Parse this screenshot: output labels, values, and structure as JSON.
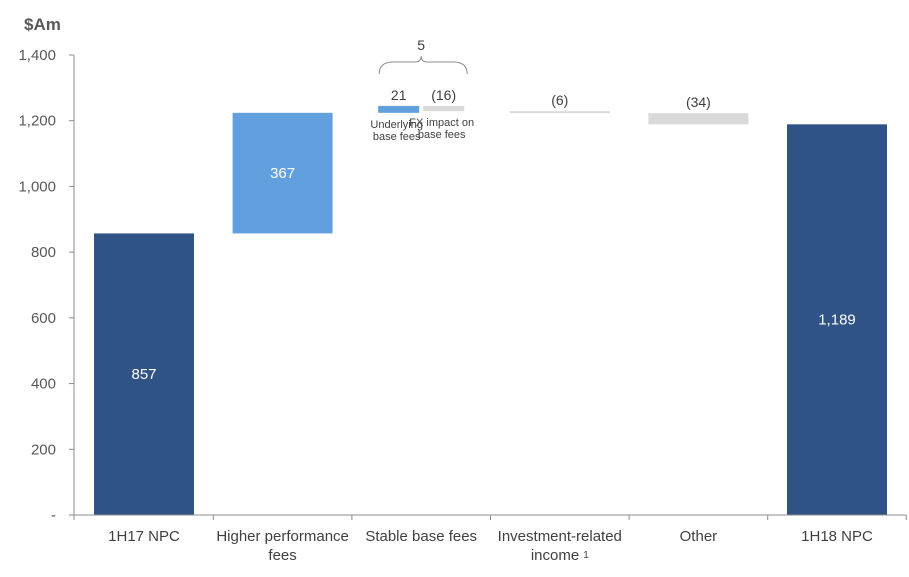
{
  "chart_data": {
    "type": "waterfall",
    "title": "",
    "ylabel": "$Am",
    "ylim": [
      0,
      1400
    ],
    "yticks": [
      {
        "value": 0,
        "label": "-"
      },
      {
        "value": 200,
        "label": "200"
      },
      {
        "value": 400,
        "label": "400"
      },
      {
        "value": 600,
        "label": "600"
      },
      {
        "value": 800,
        "label": "800"
      },
      {
        "value": 1000,
        "label": "1,000"
      },
      {
        "value": 1200,
        "label": "1,200"
      },
      {
        "value": 1400,
        "label": "1,400"
      }
    ],
    "categories": [
      {
        "label_lines": [
          "1H17 NPC"
        ],
        "superscript": ""
      },
      {
        "label_lines": [
          "Higher performance",
          "fees"
        ],
        "superscript": ""
      },
      {
        "label_lines": [
          "Stable base fees"
        ],
        "superscript": ""
      },
      {
        "label_lines": [
          "Investment-related",
          "income"
        ],
        "superscript": "1"
      },
      {
        "label_lines": [
          "Other"
        ],
        "superscript": ""
      },
      {
        "label_lines": [
          "1H18 NPC"
        ],
        "superscript": ""
      }
    ],
    "bars": [
      {
        "category": 0,
        "kind": "total",
        "start": 0,
        "end": 857,
        "label": "857",
        "color": "#2f5287",
        "label_inside": true
      },
      {
        "category": 1,
        "kind": "increase",
        "start": 857,
        "end": 1224,
        "label": "367",
        "color": "#619fdf",
        "label_inside": true
      },
      {
        "category": 2,
        "kind": "increase",
        "start": 1224,
        "end": 1245,
        "label": "21",
        "color": "#619fdf",
        "label_inside": false,
        "sublabel": [
          "Underlying",
          "base fees"
        ],
        "half": "left"
      },
      {
        "category": 2,
        "kind": "decrease",
        "start": 1245,
        "end": 1229,
        "label": "(16)",
        "color": "#d9d9d9",
        "label_inside": false,
        "sublabel": [
          "FX impact on",
          "base fees"
        ],
        "half": "right"
      },
      {
        "category": 3,
        "kind": "decrease",
        "start": 1229,
        "end": 1223,
        "label": "(6)",
        "color": "#d9d9d9",
        "label_inside": false
      },
      {
        "category": 4,
        "kind": "decrease",
        "start": 1223,
        "end": 1189,
        "label": "(34)",
        "color": "#d9d9d9",
        "label_inside": false
      },
      {
        "category": 5,
        "kind": "total",
        "start": 0,
        "end": 1189,
        "label": "1,189",
        "color": "#2f5287",
        "label_inside": true
      }
    ],
    "annotations": [
      {
        "category": 2,
        "text": "5",
        "type": "brace"
      }
    ],
    "grid": false,
    "legend": "none"
  }
}
